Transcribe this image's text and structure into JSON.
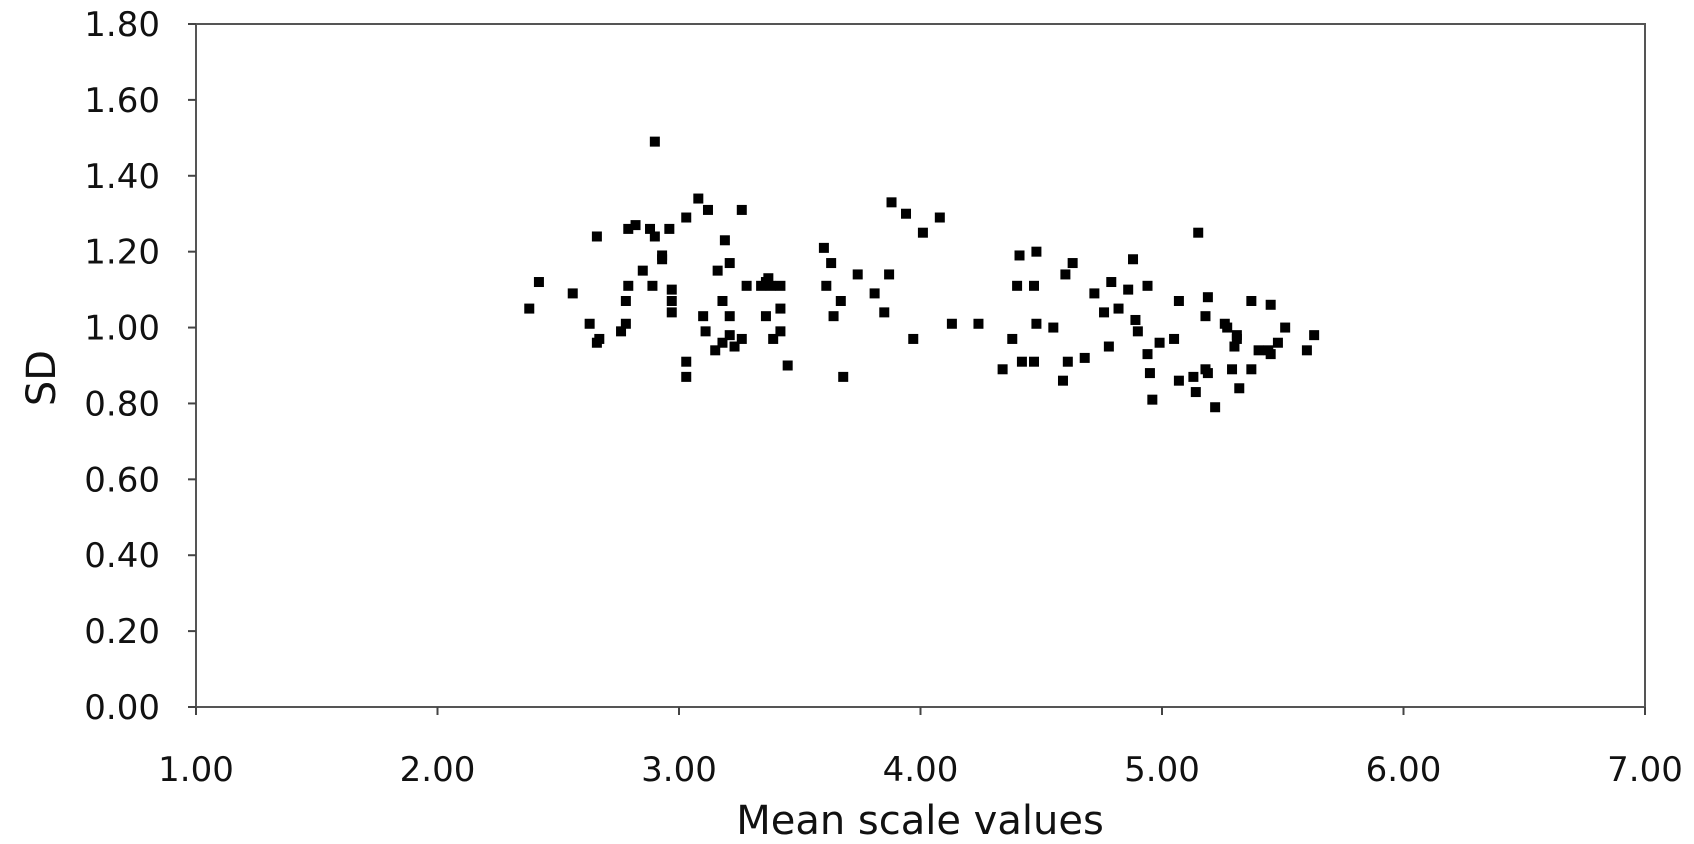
{
  "chart_data": {
    "type": "scatter",
    "title": "",
    "xlabel": "Mean scale values",
    "ylabel": "SD",
    "xlim": [
      1.0,
      7.0
    ],
    "ylim": [
      0.0,
      1.8
    ],
    "x_ticks": [
      "1.00",
      "2.00",
      "3.00",
      "4.00",
      "5.00",
      "6.00",
      "7.00"
    ],
    "y_ticks": [
      "0.00",
      "0.20",
      "0.40",
      "0.60",
      "0.80",
      "1.00",
      "1.20",
      "1.40",
      "1.60",
      "1.80"
    ],
    "grid": false,
    "legend": "none",
    "marker": "square",
    "marker_color": "#000000",
    "points": [
      [
        2.38,
        1.05
      ],
      [
        2.42,
        1.12
      ],
      [
        2.56,
        1.09
      ],
      [
        2.63,
        1.01
      ],
      [
        2.66,
        1.24
      ],
      [
        2.66,
        0.96
      ],
      [
        2.67,
        0.97
      ],
      [
        2.76,
        0.99
      ],
      [
        2.78,
        1.07
      ],
      [
        2.78,
        1.01
      ],
      [
        2.79,
        1.11
      ],
      [
        2.79,
        1.26
      ],
      [
        2.82,
        1.27
      ],
      [
        2.85,
        1.15
      ],
      [
        2.88,
        1.26
      ],
      [
        2.89,
        1.11
      ],
      [
        2.9,
        1.49
      ],
      [
        2.9,
        1.24
      ],
      [
        2.93,
        1.19
      ],
      [
        2.93,
        1.18
      ],
      [
        2.96,
        1.26
      ],
      [
        2.97,
        1.1
      ],
      [
        2.97,
        1.07
      ],
      [
        2.97,
        1.04
      ],
      [
        3.03,
        0.91
      ],
      [
        3.03,
        0.87
      ],
      [
        3.03,
        1.29
      ],
      [
        3.08,
        1.34
      ],
      [
        3.1,
        1.03
      ],
      [
        3.11,
        0.99
      ],
      [
        3.12,
        1.31
      ],
      [
        3.15,
        0.94
      ],
      [
        3.16,
        1.15
      ],
      [
        3.18,
        1.07
      ],
      [
        3.18,
        0.96
      ],
      [
        3.19,
        1.23
      ],
      [
        3.21,
        1.17
      ],
      [
        3.21,
        1.03
      ],
      [
        3.21,
        0.98
      ],
      [
        3.23,
        0.95
      ],
      [
        3.26,
        0.97
      ],
      [
        3.26,
        1.31
      ],
      [
        3.28,
        1.11
      ],
      [
        3.34,
        1.11
      ],
      [
        3.36,
        1.12
      ],
      [
        3.36,
        1.03
      ],
      [
        3.37,
        1.13
      ],
      [
        3.38,
        1.11
      ],
      [
        3.39,
        0.97
      ],
      [
        3.42,
        1.11
      ],
      [
        3.42,
        1.05
      ],
      [
        3.42,
        0.99
      ],
      [
        3.45,
        0.9
      ],
      [
        3.6,
        1.21
      ],
      [
        3.61,
        1.11
      ],
      [
        3.63,
        1.17
      ],
      [
        3.64,
        1.03
      ],
      [
        3.67,
        1.07
      ],
      [
        3.68,
        0.87
      ],
      [
        3.74,
        1.14
      ],
      [
        3.81,
        1.09
      ],
      [
        3.85,
        1.04
      ],
      [
        3.87,
        1.14
      ],
      [
        3.88,
        1.33
      ],
      [
        3.94,
        1.3
      ],
      [
        3.97,
        0.97
      ],
      [
        4.01,
        1.25
      ],
      [
        4.08,
        1.29
      ],
      [
        4.13,
        1.01
      ],
      [
        4.24,
        1.01
      ],
      [
        4.34,
        0.89
      ],
      [
        4.38,
        0.97
      ],
      [
        4.4,
        1.11
      ],
      [
        4.41,
        1.19
      ],
      [
        4.42,
        0.91
      ],
      [
        4.47,
        1.11
      ],
      [
        4.47,
        0.91
      ],
      [
        4.48,
        1.2
      ],
      [
        4.48,
        1.01
      ],
      [
        4.55,
        1.0
      ],
      [
        4.59,
        0.86
      ],
      [
        4.6,
        1.14
      ],
      [
        4.61,
        0.91
      ],
      [
        4.63,
        1.17
      ],
      [
        4.68,
        0.92
      ],
      [
        4.72,
        1.09
      ],
      [
        4.76,
        1.04
      ],
      [
        4.78,
        0.95
      ],
      [
        4.79,
        1.12
      ],
      [
        4.82,
        1.05
      ],
      [
        4.86,
        1.1
      ],
      [
        4.88,
        1.18
      ],
      [
        4.89,
        1.02
      ],
      [
        4.9,
        0.99
      ],
      [
        4.94,
        0.93
      ],
      [
        4.94,
        1.11
      ],
      [
        4.95,
        0.88
      ],
      [
        4.96,
        0.81
      ],
      [
        4.99,
        0.96
      ],
      [
        5.05,
        0.97
      ],
      [
        5.07,
        0.86
      ],
      [
        5.07,
        1.07
      ],
      [
        5.13,
        0.87
      ],
      [
        5.14,
        0.83
      ],
      [
        5.15,
        1.25
      ],
      [
        5.18,
        1.03
      ],
      [
        5.18,
        0.89
      ],
      [
        5.19,
        0.88
      ],
      [
        5.19,
        1.08
      ],
      [
        5.22,
        0.79
      ],
      [
        5.26,
        1.01
      ],
      [
        5.27,
        1.0
      ],
      [
        5.29,
        0.89
      ],
      [
        5.3,
        0.95
      ],
      [
        5.31,
        0.97
      ],
      [
        5.31,
        0.98
      ],
      [
        5.32,
        0.84
      ],
      [
        5.37,
        0.89
      ],
      [
        5.37,
        1.07
      ],
      [
        5.4,
        0.94
      ],
      [
        5.44,
        0.94
      ],
      [
        5.45,
        0.93
      ],
      [
        5.45,
        1.06
      ],
      [
        5.48,
        0.96
      ],
      [
        5.51,
        1.0
      ],
      [
        5.6,
        0.94
      ],
      [
        5.63,
        0.98
      ]
    ]
  }
}
